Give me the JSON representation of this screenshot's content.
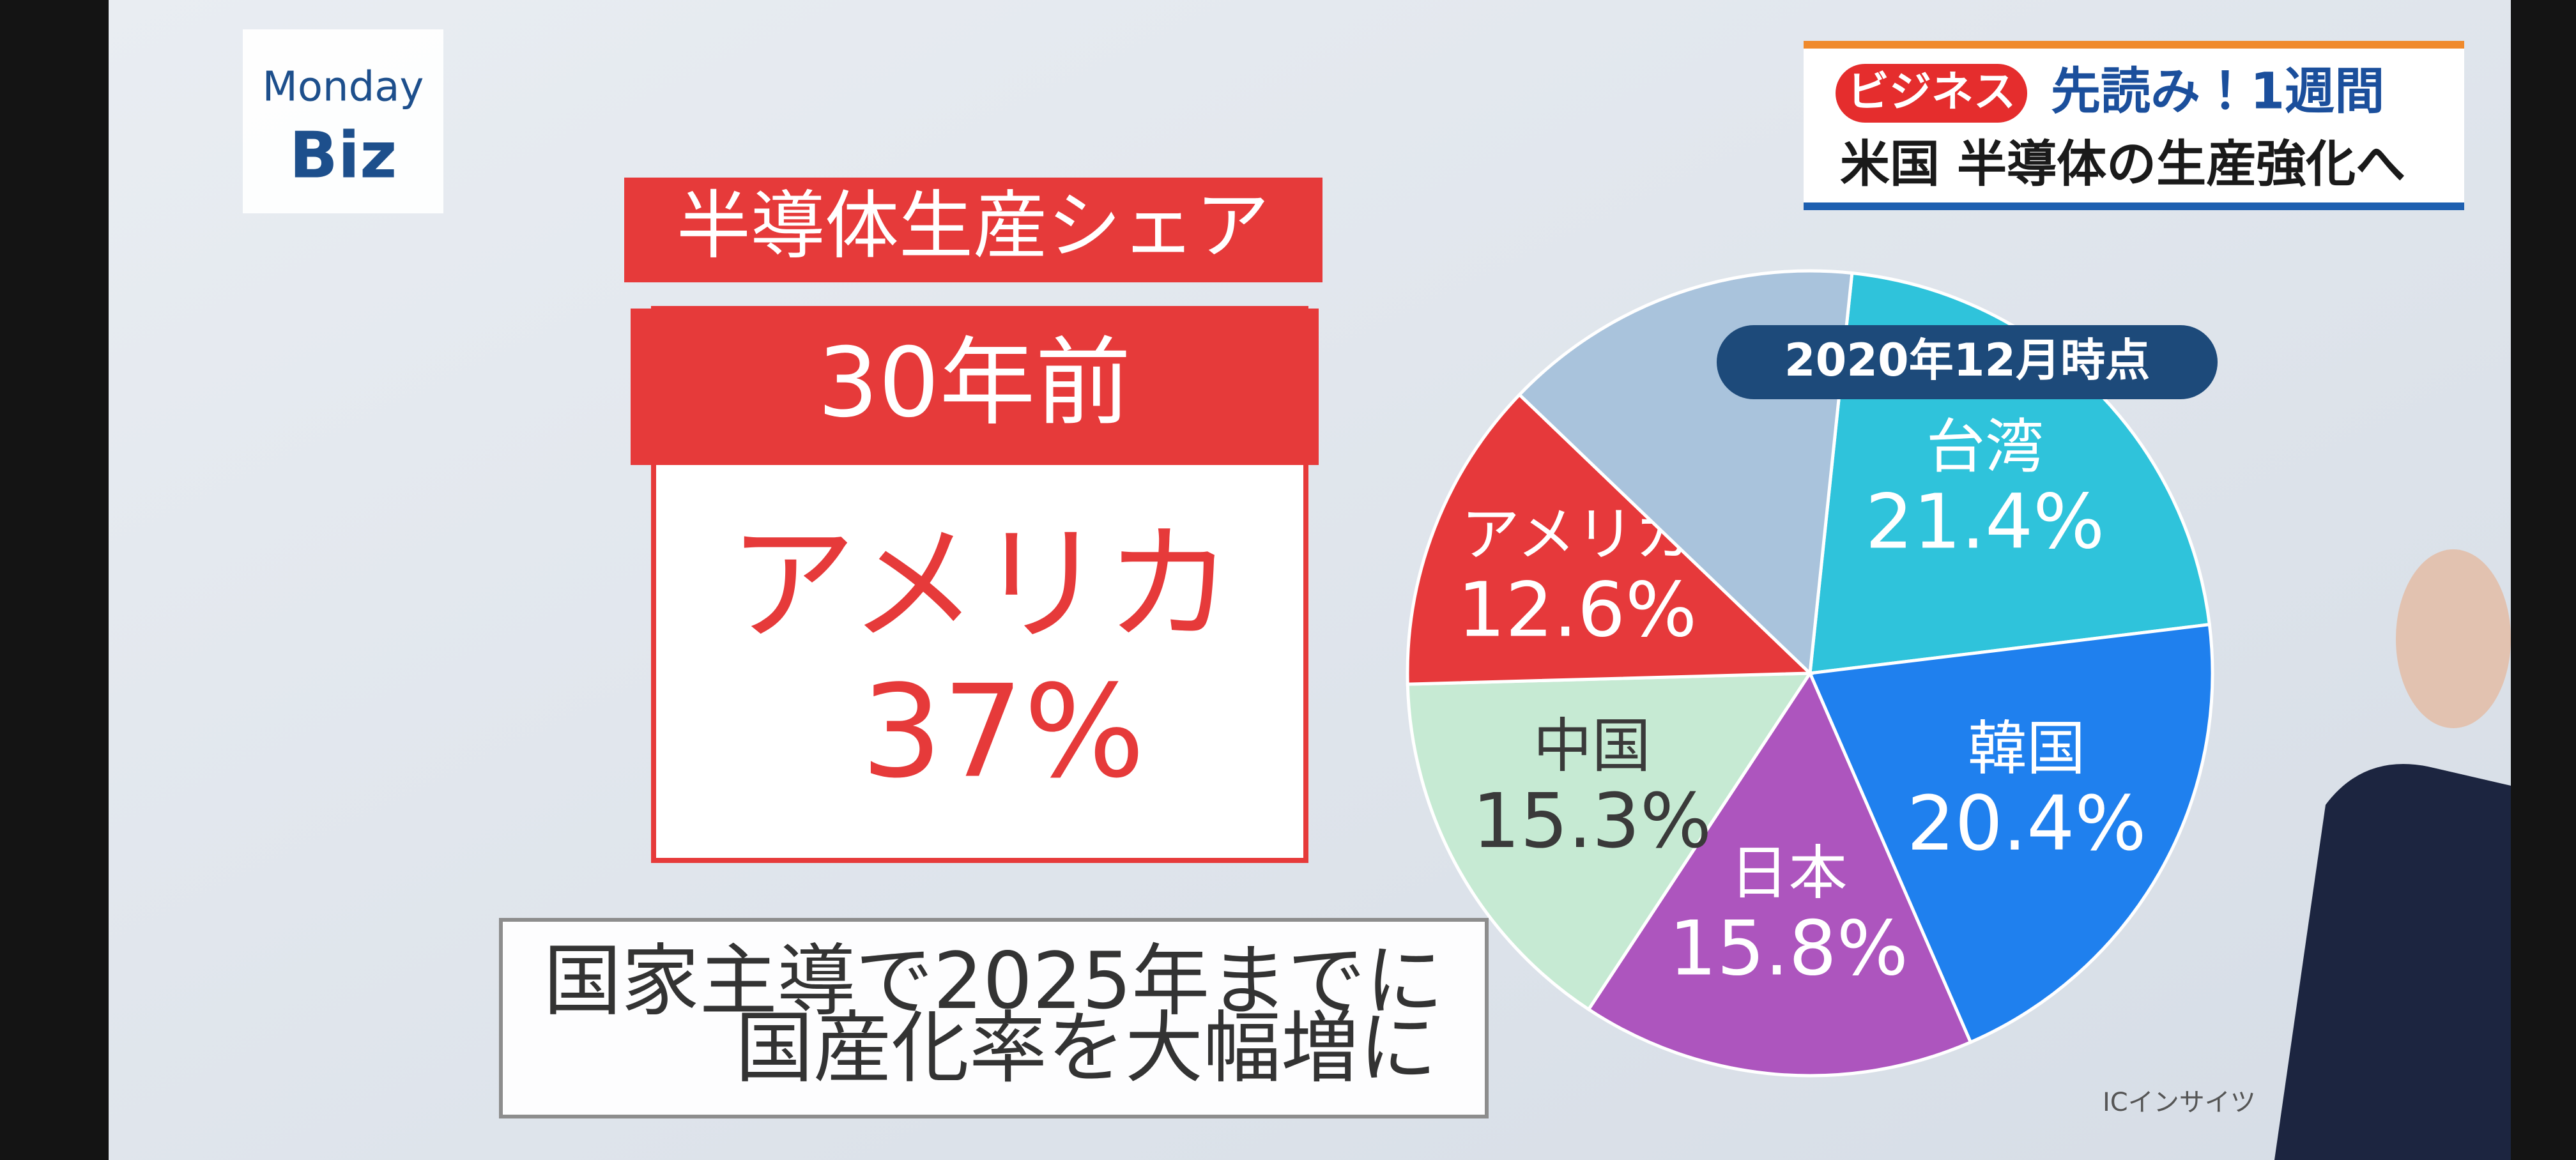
{
  "logo": {
    "line1": "Monday",
    "line2": "Biz"
  },
  "banner": {
    "tag": "ビジネス",
    "headline": "先読み！1週間",
    "topic": "米国 半導体の生産強化へ"
  },
  "panel": {
    "title": "半導体生産シェア",
    "period": "30年前",
    "country": "アメリカ",
    "share": "37%"
  },
  "caption": {
    "line1": "国家主導で2025年までに",
    "line2": "国産化率を大幅増に"
  },
  "chart_data": {
    "type": "pie",
    "subtitle": "2020年12月時点",
    "categories": [
      "台湾",
      "韓国",
      "日本",
      "中国",
      "アメリカ",
      null
    ],
    "values": [
      21.4,
      20.4,
      15.8,
      15.3,
      12.6,
      14.5
    ],
    "value_labels": [
      "21.4%",
      "20.4%",
      "15.8%",
      "15.3%",
      "12.6%",
      null
    ],
    "colors": [
      "#2fc3db",
      "#1f80ee",
      "#ad55be",
      "#c6ead3",
      "#e6393b",
      "#a9c3dc"
    ],
    "label_colors": [
      "#ffffff",
      "#ffffff",
      "#ffffff",
      "#3a3a3a",
      "#ffffff",
      "#ffffff"
    ],
    "source": "ICインサイツ"
  }
}
